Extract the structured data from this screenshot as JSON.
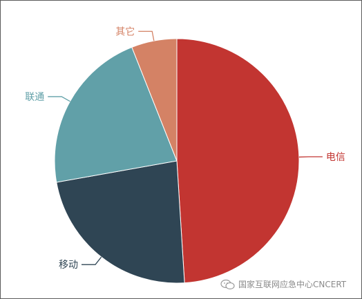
{
  "chart_data": {
    "type": "pie",
    "slices": [
      {
        "label": "电信",
        "value": 49,
        "color": "#c23531"
      },
      {
        "label": "移动",
        "value": 23.2,
        "color": "#2f4554"
      },
      {
        "label": "联通",
        "value": 21.8,
        "color": "#61a0a8"
      },
      {
        "label": "其它",
        "value": 6,
        "color": "#d48265"
      }
    ]
  },
  "watermark": {
    "text": "国家互联网应急中心CNCERT"
  }
}
